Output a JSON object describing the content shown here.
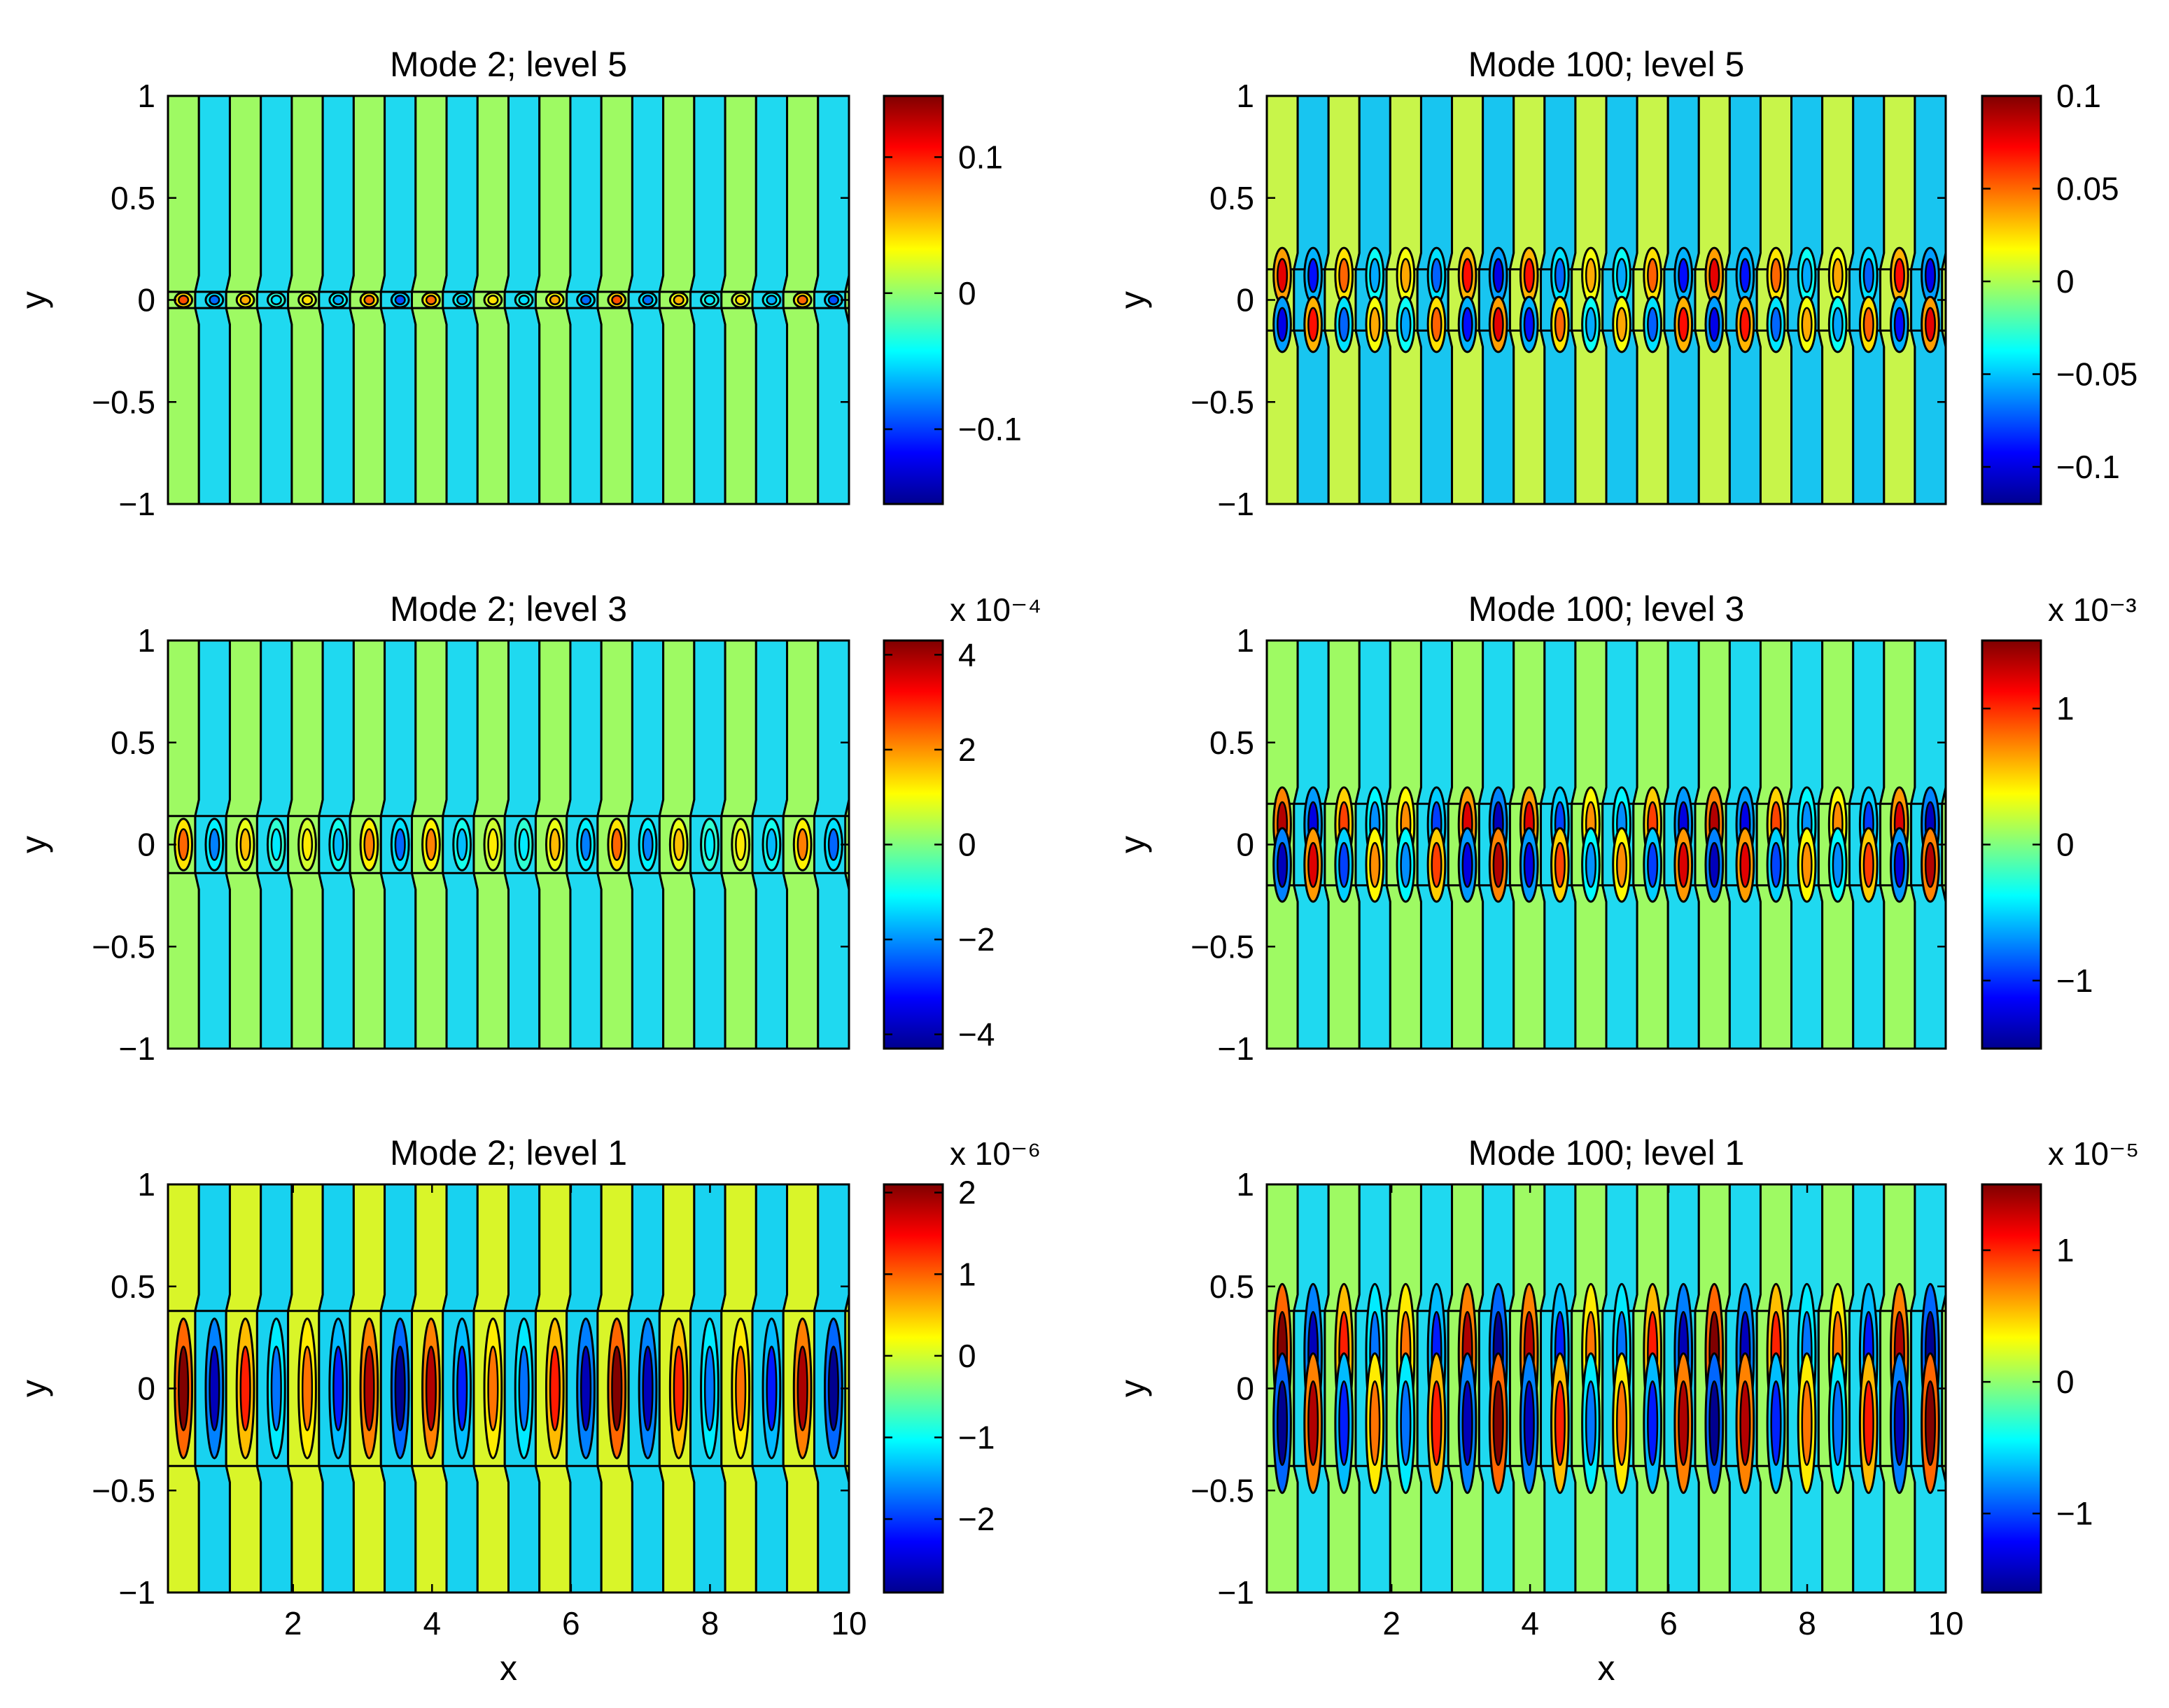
{
  "figure_title": "",
  "chart_data": [
    {
      "type": "heatmap",
      "subtype": "filled-contour",
      "title": "Mode 2; level 5",
      "xlabel": "",
      "ylabel": "y",
      "xlim": [
        0.2,
        10
      ],
      "ylim": [
        -1,
        1
      ],
      "xticks": [],
      "yticks": [
        "1",
        "0.5",
        "0",
        "−0.5",
        "−1"
      ],
      "colorbar": {
        "range": [
          -0.155,
          0.145
        ],
        "ticks": [
          "0.1",
          "0",
          "−0.1"
        ],
        "multiplier": "",
        "colormap": "jet"
      },
      "pattern": {
        "stripes": 22,
        "band_half_width": 0.04,
        "core_y": [
          0
        ],
        "core_count": 22,
        "blob_amplitude": 0.6,
        "stripe_levels": [
          "#9efa63",
          "#1fd9f0"
        ]
      }
    },
    {
      "type": "heatmap",
      "subtype": "filled-contour",
      "title": "Mode 100; level 5",
      "xlabel": "",
      "ylabel": "y",
      "xlim": [
        0.2,
        10
      ],
      "ylim": [
        -1,
        1
      ],
      "xticks": [],
      "yticks": [
        "1",
        "0.5",
        "0",
        "−0.5",
        "−1"
      ],
      "colorbar": {
        "range": [
          -0.12,
          0.1
        ],
        "ticks": [
          "0.1",
          "0.05",
          "0",
          "−0.05",
          "−0.1"
        ],
        "multiplier": "",
        "colormap": "jet"
      },
      "pattern": {
        "stripes": 22,
        "band_half_width": 0.15,
        "core_y": [
          0.12,
          -0.12
        ],
        "core_count": 22,
        "blob_amplitude": 0.8,
        "stripe_levels": [
          "#c8f54a",
          "#18c5f0"
        ]
      }
    },
    {
      "type": "heatmap",
      "subtype": "filled-contour",
      "title": "Mode 2; level 3",
      "xlabel": "",
      "ylabel": "y",
      "xlim": [
        0.2,
        10
      ],
      "ylim": [
        -1,
        1
      ],
      "xticks": [],
      "yticks": [
        "1",
        "0.5",
        "0",
        "−0.5",
        "−1"
      ],
      "colorbar": {
        "range": [
          -4.3,
          4.3
        ],
        "ticks": [
          "4",
          "2",
          "0",
          "−2",
          "−4"
        ],
        "multiplier": "x 10⁻⁴",
        "colormap": "jet"
      },
      "pattern": {
        "stripes": 22,
        "band_half_width": 0.14,
        "core_y": [
          0
        ],
        "core_count": 22,
        "blob_amplitude": 0.55,
        "stripe_levels": [
          "#9efa63",
          "#1fd9f0"
        ]
      }
    },
    {
      "type": "heatmap",
      "subtype": "filled-contour",
      "title": "Mode 100; level 3",
      "xlabel": "",
      "ylabel": "y",
      "xlim": [
        0.2,
        10
      ],
      "ylim": [
        -1,
        1
      ],
      "xticks": [],
      "yticks": [
        "1",
        "0.5",
        "0",
        "−0.5",
        "−1"
      ],
      "colorbar": {
        "range": [
          -1.5,
          1.5
        ],
        "ticks": [
          "1",
          "0",
          "−1"
        ],
        "multiplier": "x 10⁻³",
        "colormap": "jet"
      },
      "pattern": {
        "stripes": 22,
        "band_half_width": 0.2,
        "core_y": [
          0.1,
          -0.1
        ],
        "core_count": 22,
        "blob_amplitude": 0.9,
        "stripe_levels": [
          "#9efa63",
          "#1fd9f0"
        ]
      }
    },
    {
      "type": "heatmap",
      "subtype": "filled-contour",
      "title": "Mode 2; level 1",
      "xlabel": "x",
      "ylabel": "y",
      "xlim": [
        0.2,
        10
      ],
      "ylim": [
        -1,
        1
      ],
      "xticks": [
        "2",
        "4",
        "6",
        "8",
        "10"
      ],
      "yticks": [
        "1",
        "0.5",
        "0",
        "−0.5",
        "−1"
      ],
      "colorbar": {
        "range": [
          -2.9,
          2.1
        ],
        "ticks": [
          "2",
          "1",
          "0",
          "−1",
          "−2"
        ],
        "multiplier": "x 10⁻⁶",
        "colormap": "jet"
      },
      "pattern": {
        "stripes": 22,
        "band_half_width": 0.38,
        "core_y": [
          0
        ],
        "core_count": 22,
        "blob_amplitude": 1.0,
        "stripe_levels": [
          "#d9f529",
          "#18d2f0"
        ]
      }
    },
    {
      "type": "heatmap",
      "subtype": "filled-contour",
      "title": "Mode 100; level 1",
      "xlabel": "x",
      "ylabel": "y",
      "xlim": [
        0.2,
        10
      ],
      "ylim": [
        -1,
        1
      ],
      "xticks": [
        "2",
        "4",
        "6",
        "8",
        "10"
      ],
      "yticks": [
        "1",
        "0.5",
        "0",
        "−0.5",
        "−1"
      ],
      "colorbar": {
        "range": [
          -1.6,
          1.5
        ],
        "ticks": [
          "1",
          "0",
          "−1"
        ],
        "multiplier": "x 10⁻⁵",
        "colormap": "jet"
      },
      "pattern": {
        "stripes": 22,
        "band_half_width": 0.38,
        "core_y": [
          0.17,
          -0.17
        ],
        "core_count": 22,
        "blob_amplitude": 1.0,
        "stripe_levels": [
          "#9efa63",
          "#1fd9f0"
        ]
      }
    }
  ]
}
